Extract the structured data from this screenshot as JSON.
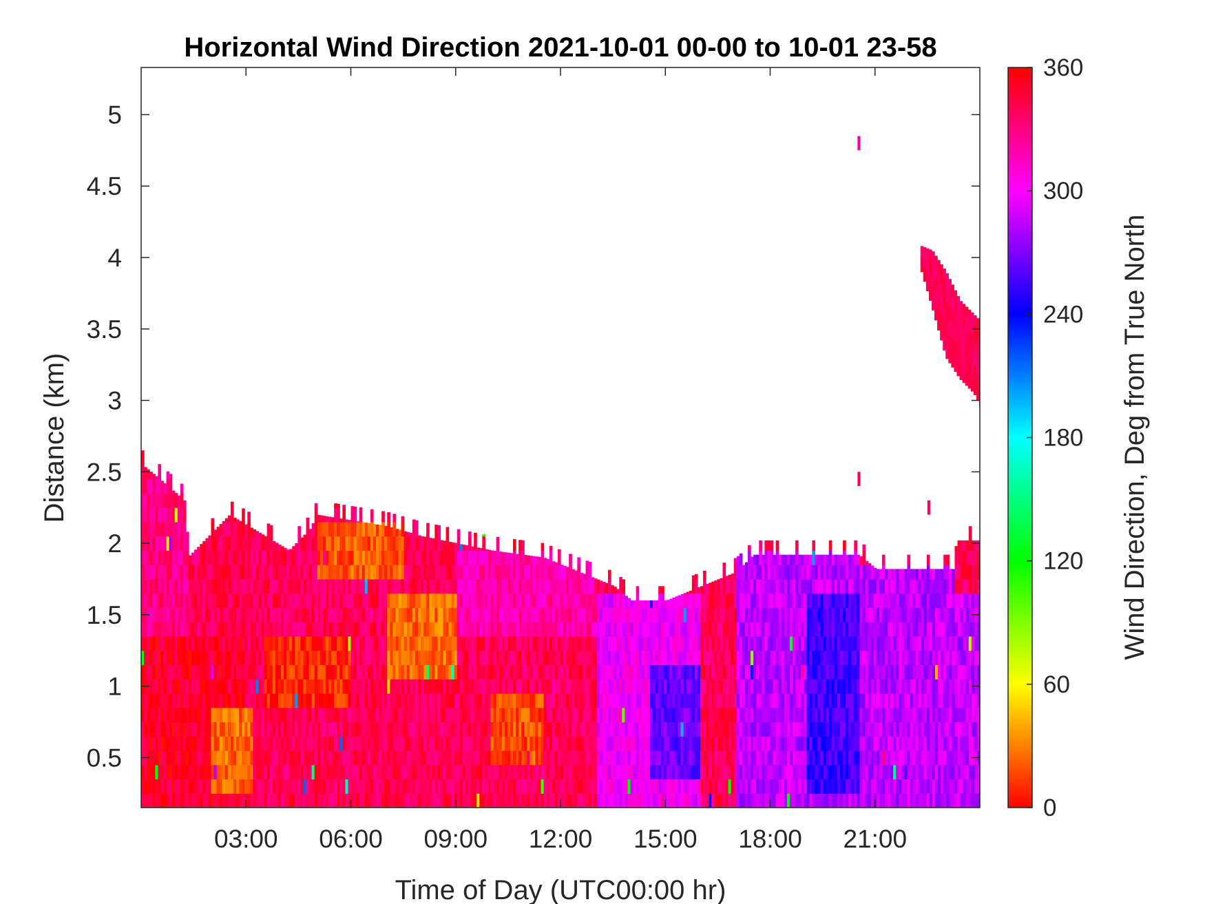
{
  "chart_data": {
    "type": "heatmap",
    "title": "Horizontal Wind Direction 2021-10-01 00-00 to 10-01 23-58",
    "xlabel": "Time of Day (UTC00:00 hr)",
    "ylabel": "Distance (km)",
    "x_unit": "hours UTC",
    "xlim": [
      0,
      24
    ],
    "ylim": [
      0.15,
      5.33
    ],
    "x_ticks": [
      {
        "value": 3,
        "label": "03:00"
      },
      {
        "value": 6,
        "label": "06:00"
      },
      {
        "value": 9,
        "label": "09:00"
      },
      {
        "value": 12,
        "label": "12:00"
      },
      {
        "value": 15,
        "label": "15:00"
      },
      {
        "value": 18,
        "label": "18:00"
      },
      {
        "value": 21,
        "label": "21:00"
      }
    ],
    "y_ticks": [
      {
        "value": 0.5,
        "label": "0.5"
      },
      {
        "value": 1,
        "label": "1"
      },
      {
        "value": 1.5,
        "label": "1.5"
      },
      {
        "value": 2,
        "label": "2"
      },
      {
        "value": 2.5,
        "label": "2.5"
      },
      {
        "value": 3,
        "label": "3"
      },
      {
        "value": 3.5,
        "label": "3.5"
      },
      {
        "value": 4,
        "label": "4"
      },
      {
        "value": 4.5,
        "label": "4.5"
      },
      {
        "value": 5,
        "label": "5"
      }
    ],
    "colorbar": {
      "label": "Wind Direction, Deg from True North",
      "range": [
        0,
        360
      ],
      "ticks": [
        {
          "value": 0,
          "label": "0"
        },
        {
          "value": 60,
          "label": "60"
        },
        {
          "value": 120,
          "label": "120"
        },
        {
          "value": 180,
          "label": "180"
        },
        {
          "value": 240,
          "label": "240"
        },
        {
          "value": 300,
          "label": "300"
        },
        {
          "value": 360,
          "label": "360"
        }
      ],
      "colormap": "hsv",
      "colors": [
        "#ff0000",
        "#ffff00",
        "#00ff00",
        "#00ffff",
        "#0000ff",
        "#ff00ff",
        "#ff0000"
      ]
    },
    "data_top_height_km": [
      {
        "t": 0.0,
        "h": 2.55
      },
      {
        "t": 0.5,
        "h": 2.45
      },
      {
        "t": 1.2,
        "h": 2.3
      },
      {
        "t": 1.3,
        "h": 1.9
      },
      {
        "t": 2.1,
        "h": 2.1
      },
      {
        "t": 2.5,
        "h": 2.2
      },
      {
        "t": 4.2,
        "h": 1.95
      },
      {
        "t": 4.8,
        "h": 2.1
      },
      {
        "t": 5.0,
        "h": 2.2
      },
      {
        "t": 7.0,
        "h": 2.12
      },
      {
        "t": 8.0,
        "h": 2.05
      },
      {
        "t": 10.0,
        "h": 1.95
      },
      {
        "t": 11.5,
        "h": 1.9
      },
      {
        "t": 13.0,
        "h": 1.75
      },
      {
        "t": 13.5,
        "h": 1.7
      },
      {
        "t": 14.0,
        "h": 1.6
      },
      {
        "t": 15.0,
        "h": 1.6
      },
      {
        "t": 16.5,
        "h": 1.75
      },
      {
        "t": 17.0,
        "h": 1.8
      },
      {
        "t": 17.5,
        "h": 1.92
      },
      {
        "t": 20.5,
        "h": 1.92
      },
      {
        "t": 21.0,
        "h": 1.82
      },
      {
        "t": 23.2,
        "h": 1.82
      },
      {
        "t": 23.3,
        "h": 2.02
      },
      {
        "t": 24.0,
        "h": 2.02
      }
    ],
    "direction_regions": [
      {
        "t0": 0.0,
        "t1": 1.3,
        "h0": 0.15,
        "h1": 2.55,
        "deg": 330
      },
      {
        "t0": 0.0,
        "t1": 3.0,
        "h0": 0.15,
        "h1": 1.3,
        "deg": 350
      },
      {
        "t0": 2.0,
        "t1": 3.2,
        "h0": 0.2,
        "h1": 0.8,
        "deg": 25
      },
      {
        "t0": 3.5,
        "t1": 6.0,
        "h0": 0.8,
        "h1": 1.3,
        "deg": 8
      },
      {
        "t0": 5.0,
        "t1": 7.5,
        "h0": 1.7,
        "h1": 2.1,
        "deg": 20
      },
      {
        "t0": 7.0,
        "t1": 9.0,
        "h0": 1.0,
        "h1": 1.6,
        "deg": 25
      },
      {
        "t0": 10.0,
        "t1": 11.5,
        "h0": 0.4,
        "h1": 0.9,
        "deg": 18
      },
      {
        "t0": 9.0,
        "t1": 13.0,
        "h0": 1.3,
        "h1": 1.9,
        "deg": 320
      },
      {
        "t0": 13.0,
        "t1": 16.0,
        "h0": 0.15,
        "h1": 1.6,
        "deg": 300
      },
      {
        "t0": 14.5,
        "t1": 16.0,
        "h0": 0.3,
        "h1": 1.1,
        "deg": 265
      },
      {
        "t0": 17.0,
        "t1": 20.5,
        "h0": 0.15,
        "h1": 1.9,
        "deg": 285
      },
      {
        "t0": 19.0,
        "t1": 21.0,
        "h0": 0.2,
        "h1": 1.6,
        "deg": 255
      },
      {
        "t0": 20.5,
        "t1": 24.0,
        "h0": 0.15,
        "h1": 1.8,
        "deg": 285
      },
      {
        "t0": 23.2,
        "t1": 24.0,
        "h0": 1.6,
        "h1": 2.02,
        "deg": 340
      }
    ],
    "upper_layer": {
      "deg": 340,
      "points": [
        {
          "t": 22.3,
          "h_top": 4.08,
          "h_bottom": 3.9
        },
        {
          "t": 22.6,
          "h_top": 4.05,
          "h_bottom": 3.65
        },
        {
          "t": 23.0,
          "h_top": 3.9,
          "h_bottom": 3.3
        },
        {
          "t": 23.4,
          "h_top": 3.7,
          "h_bottom": 3.15
        },
        {
          "t": 23.8,
          "h_top": 3.6,
          "h_bottom": 3.05
        },
        {
          "t": 24.0,
          "h_top": 3.55,
          "h_bottom": 2.95
        }
      ]
    },
    "isolated_points": [
      {
        "t": 20.5,
        "h": 4.75,
        "deg": 320
      },
      {
        "t": 20.5,
        "h": 2.4,
        "deg": 340
      },
      {
        "t": 22.5,
        "h": 2.2,
        "deg": 340
      }
    ]
  }
}
